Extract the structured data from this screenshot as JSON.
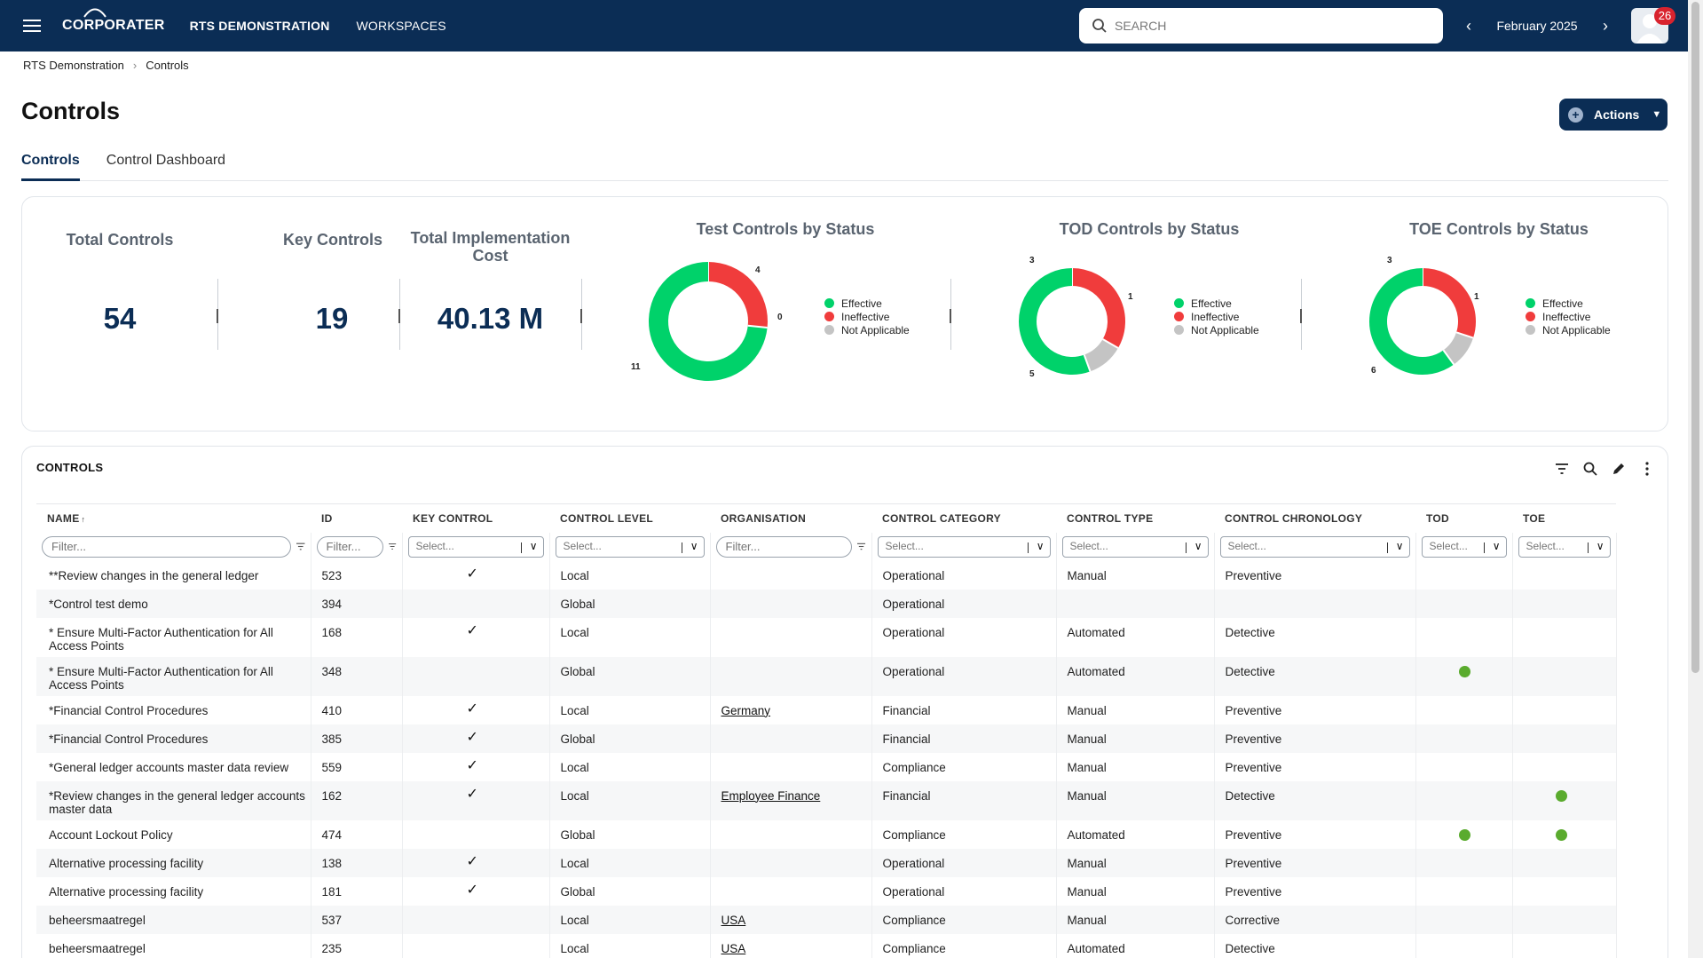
{
  "topbar": {
    "brand": "CORPORATER",
    "workspace": "RTS DEMONSTRATION",
    "workspaces_link": "WORKSPACES",
    "search_placeholder": "SEARCH",
    "period": "February 2025",
    "notifications": "26"
  },
  "breadcrumb": {
    "root": "RTS Demonstration",
    "current": "Controls"
  },
  "page": {
    "title": "Controls",
    "actions_label": "Actions"
  },
  "tabs": [
    {
      "label": "Controls"
    },
    {
      "label": "Control Dashboard"
    }
  ],
  "kpis": {
    "total_controls": {
      "title": "Total Controls",
      "value": "54"
    },
    "key_controls": {
      "title": "Key Controls",
      "value": "19"
    },
    "impl_cost": {
      "title1": "Total Implementation",
      "title2": "Cost",
      "value": "40.13 M"
    }
  },
  "colors": {
    "effective": "#00d26a",
    "ineffective": "#f03c3c",
    "not_applicable": "#c4c4c4",
    "brand": "#0b2d55"
  },
  "charts": [
    {
      "title": "Test Controls by Status",
      "legend": [
        "Effective",
        "Ineffective",
        "Not Applicable"
      ],
      "effective": 11,
      "ineffective": 4,
      "na": 0
    },
    {
      "title": "TOD Controls by Status",
      "legend": [
        "Effective",
        "Ineffective",
        "Not Applicable"
      ],
      "effective": 5,
      "ineffective": 3,
      "na": 1
    },
    {
      "title": "TOE Controls by Status",
      "legend": [
        "Effective",
        "Ineffective",
        "Not Applicable"
      ],
      "effective": 6,
      "ineffective": 3,
      "na": 1
    }
  ],
  "grid": {
    "title": "CONTROLS",
    "columns": [
      "NAME",
      "ID",
      "KEY CONTROL",
      "CONTROL LEVEL",
      "ORGANISATION",
      "CONTROL CATEGORY",
      "CONTROL TYPE",
      "CONTROL CHRONOLOGY",
      "TOD",
      "TOE"
    ],
    "sort_indicator": "↑",
    "filter_placeholder": "Filter...",
    "select_placeholder": "Select...",
    "rows": [
      {
        "name": "**Review changes in the general ledger",
        "id": "523",
        "key": true,
        "level": "Local",
        "org": "",
        "category": "Operational",
        "type": "Manual",
        "chrono": "Preventive",
        "tod": false,
        "toe": false
      },
      {
        "name": "*Control test demo",
        "id": "394",
        "key": false,
        "level": "Global",
        "org": "",
        "category": "Operational",
        "type": "",
        "chrono": "",
        "tod": false,
        "toe": false
      },
      {
        "name": "* Ensure Multi-Factor Authentication for All Access Points",
        "id": "168",
        "key": true,
        "level": "Local",
        "org": "",
        "category": "Operational",
        "type": "Automated",
        "chrono": "Detective",
        "tod": false,
        "toe": false,
        "tall": true
      },
      {
        "name": "* Ensure Multi-Factor Authentication for All Access Points",
        "id": "348",
        "key": false,
        "level": "Global",
        "org": "",
        "category": "Operational",
        "type": "Automated",
        "chrono": "Detective",
        "tod": true,
        "toe": false,
        "tall": true
      },
      {
        "name": "*Financial Control Procedures",
        "id": "410",
        "key": true,
        "level": "Local",
        "org": "Germany",
        "category": "Financial",
        "type": "Manual",
        "chrono": "Preventive",
        "tod": false,
        "toe": false
      },
      {
        "name": "*Financial Control Procedures",
        "id": "385",
        "key": true,
        "level": "Global",
        "org": "",
        "category": "Financial",
        "type": "Manual",
        "chrono": "Preventive",
        "tod": false,
        "toe": false
      },
      {
        "name": "*General ledger accounts master data review",
        "id": "559",
        "key": true,
        "level": "Local",
        "org": "",
        "category": "Compliance",
        "type": "Manual",
        "chrono": "Preventive",
        "tod": false,
        "toe": false
      },
      {
        "name": "*Review changes in the general ledger accounts master data",
        "id": "162",
        "key": true,
        "level": "Local",
        "org": "Employee Finance",
        "category": "Financial",
        "type": "Manual",
        "chrono": "Detective",
        "tod": false,
        "toe": true,
        "tall": true
      },
      {
        "name": "Account Lockout Policy",
        "id": "474",
        "key": false,
        "level": "Global",
        "org": "",
        "category": "Compliance",
        "type": "Automated",
        "chrono": "Preventive",
        "tod": true,
        "toe": true
      },
      {
        "name": "Alternative processing facility",
        "id": "138",
        "key": true,
        "level": "Local",
        "org": "",
        "category": "Operational",
        "type": "Manual",
        "chrono": "Preventive",
        "tod": false,
        "toe": false
      },
      {
        "name": "Alternative processing facility",
        "id": "181",
        "key": true,
        "level": "Global",
        "org": "",
        "category": "Operational",
        "type": "Manual",
        "chrono": "Preventive",
        "tod": false,
        "toe": false
      },
      {
        "name": "beheersmaatregel",
        "id": "537",
        "key": false,
        "level": "Local",
        "org": "USA",
        "category": "Compliance",
        "type": "Manual",
        "chrono": "Corrective",
        "tod": false,
        "toe": false
      },
      {
        "name": "beheersmaatregel",
        "id": "235",
        "key": false,
        "level": "Local",
        "org": "USA",
        "category": "Compliance",
        "type": "Automated",
        "chrono": "Detective",
        "tod": false,
        "toe": false
      }
    ]
  }
}
